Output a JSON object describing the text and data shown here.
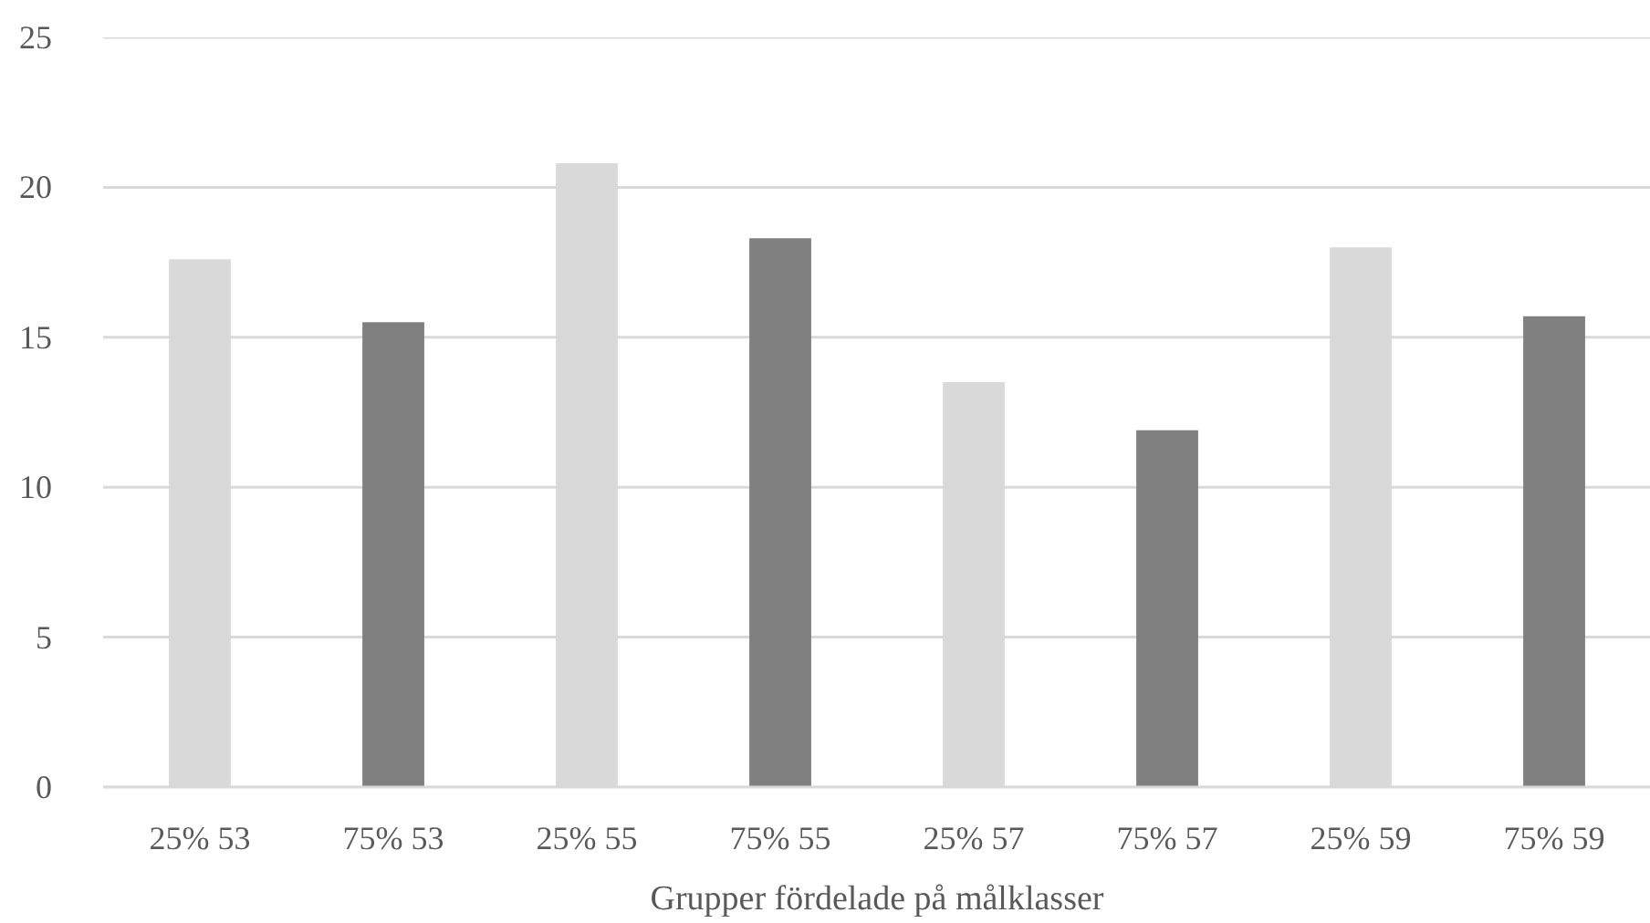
{
  "chart_data": {
    "type": "bar",
    "xlabel": "Grupper fördelade på målklasser",
    "categories": [
      "25% 53",
      "75% 53",
      "25% 55",
      "75% 55",
      "25% 57",
      "75% 57",
      "25% 59",
      "75% 59"
    ],
    "values": [
      17.6,
      15.5,
      20.8,
      18.3,
      13.5,
      11.9,
      18.0,
      15.7
    ],
    "colors": [
      "#d9d9d9",
      "#808080",
      "#d9d9d9",
      "#808080",
      "#d9d9d9",
      "#808080",
      "#d9d9d9",
      "#808080"
    ],
    "ylim": [
      0,
      25
    ],
    "yticks": [
      0,
      5,
      10,
      15,
      20,
      25
    ],
    "grid": "y"
  }
}
